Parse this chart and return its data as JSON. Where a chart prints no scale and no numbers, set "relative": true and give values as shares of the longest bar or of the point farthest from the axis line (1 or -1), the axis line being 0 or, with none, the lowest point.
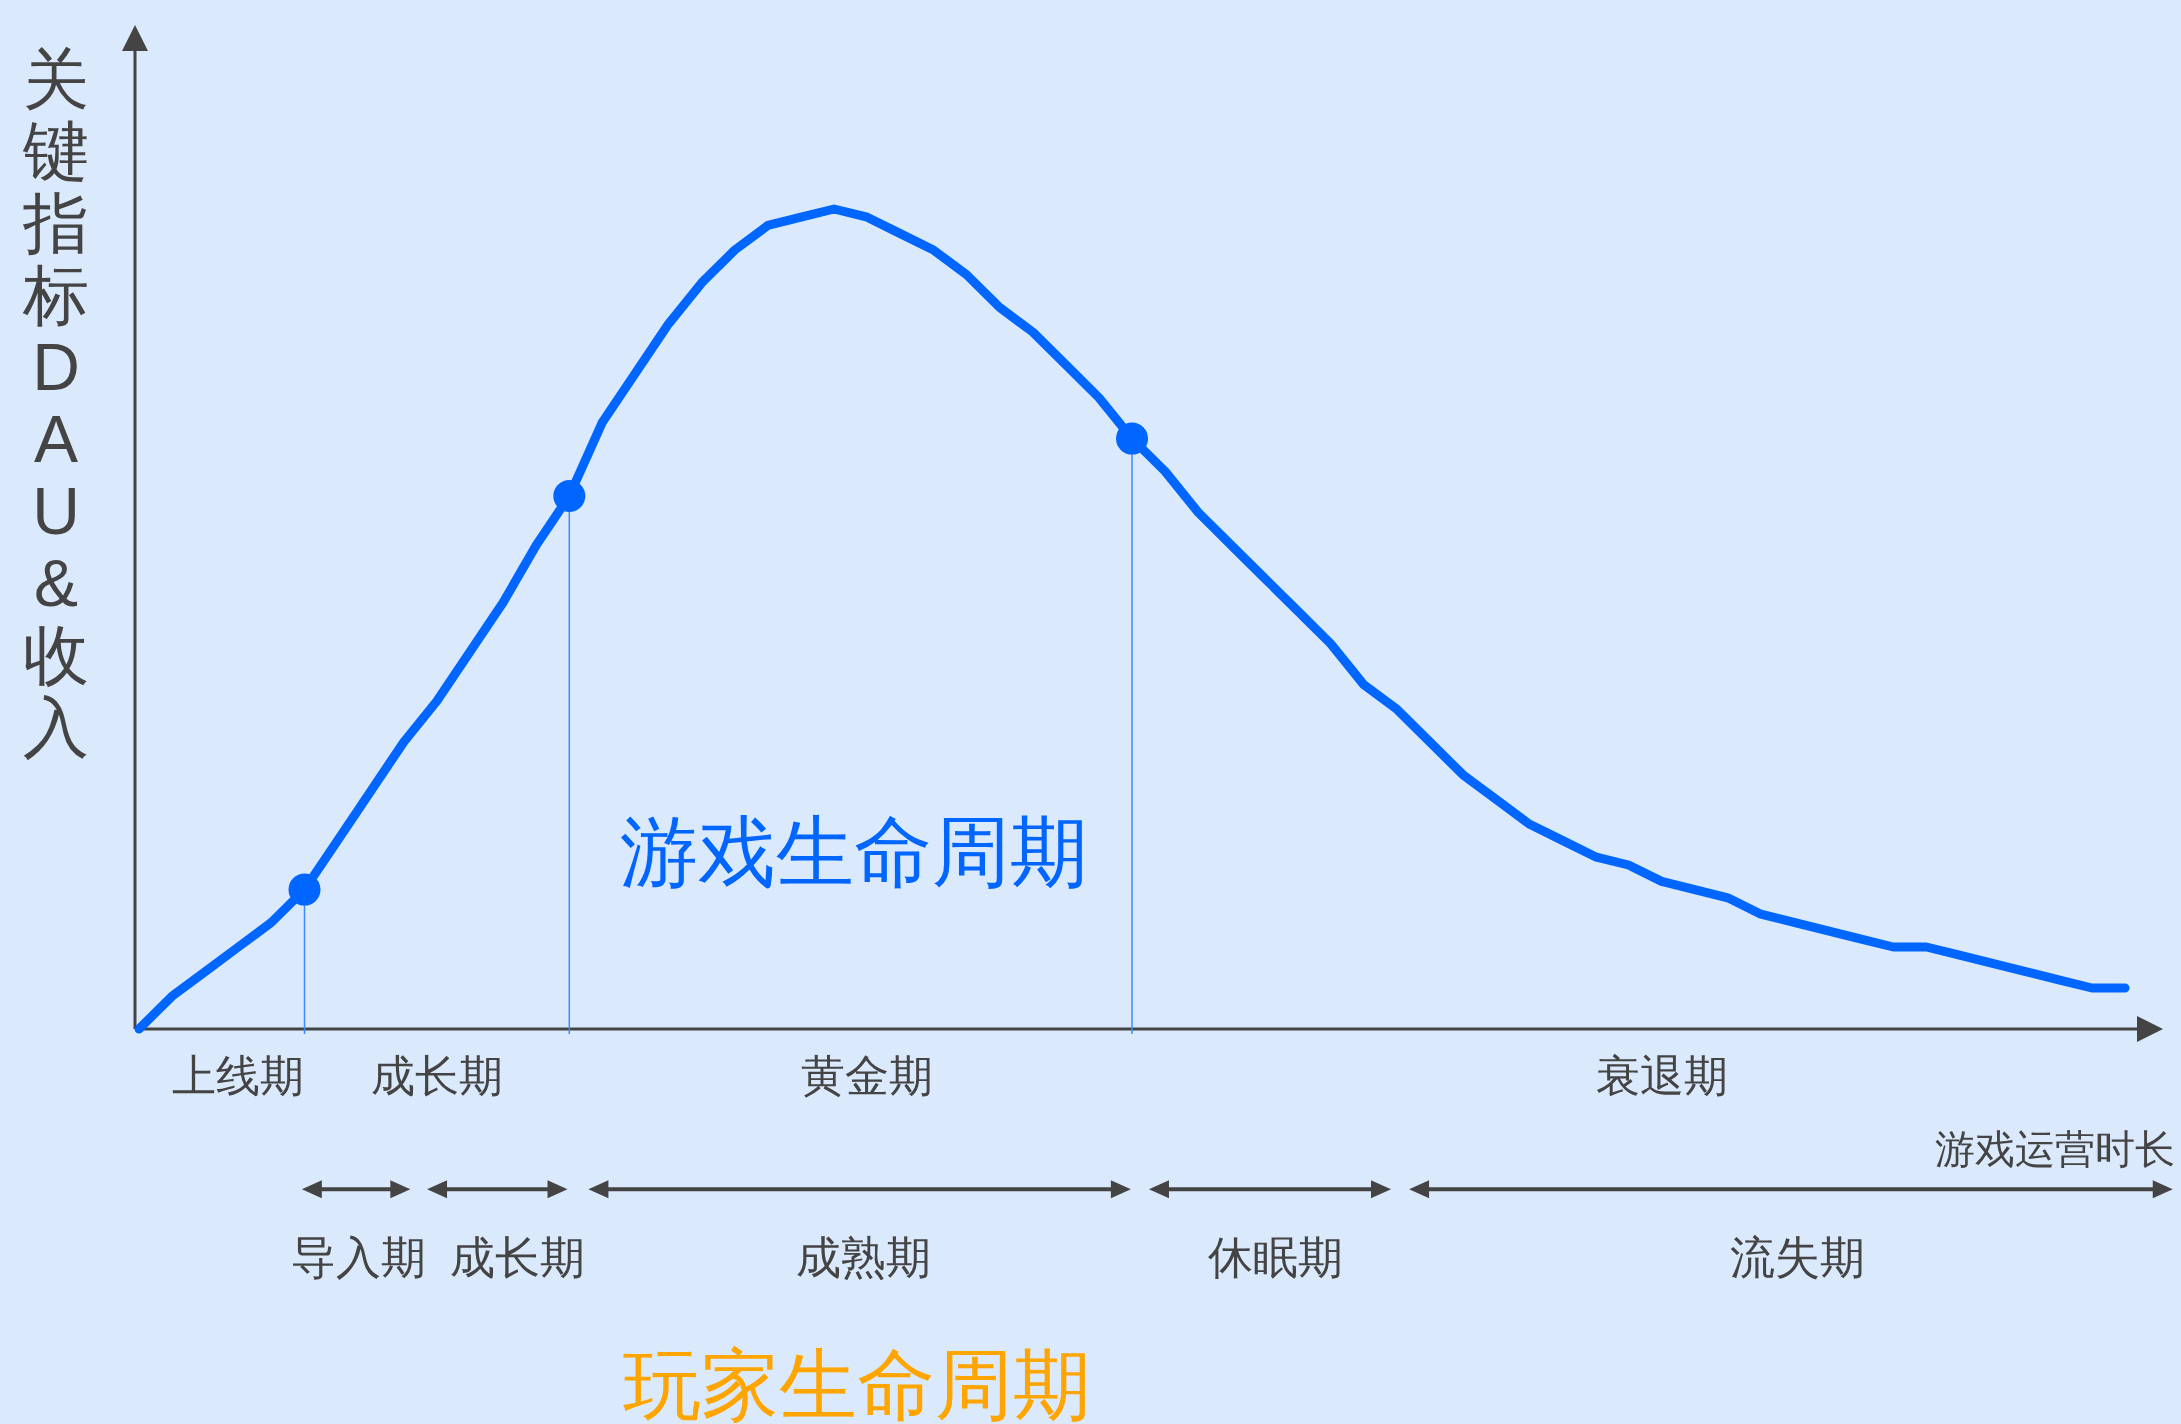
{
  "chart_data": {
    "type": "line",
    "relative": true,
    "xlabel": "游戏运营时长",
    "ylabel": "关键指标DAU&收入",
    "categories": [
      null,
      null,
      null,
      "上线期",
      null,
      null,
      null,
      null,
      null,
      "成长期",
      null,
      null,
      null,
      null,
      null,
      null,
      null,
      null,
      null,
      null,
      null,
      null,
      "黄金期",
      null,
      null,
      null,
      null,
      null,
      null,
      null,
      null,
      null,
      null,
      null,
      null,
      null,
      null,
      null,
      null,
      null,
      null,
      null,
      null,
      null,
      null,
      null,
      "衰退期",
      null,
      null,
      null,
      null,
      null,
      null,
      null,
      null,
      null,
      null,
      null,
      null,
      null,
      null
    ],
    "series": [
      {
        "color": "#0066ff",
        "marker": "none",
        "values": [
          0.0,
          0.04,
          0.07,
          0.1,
          0.13,
          0.17,
          0.23,
          0.29,
          0.35,
          0.4,
          0.46,
          0.52,
          0.59,
          0.65,
          0.74,
          0.8,
          0.86,
          0.91,
          0.95,
          0.98,
          0.99,
          1.0,
          0.99,
          0.97,
          0.95,
          0.92,
          0.88,
          0.85,
          0.81,
          0.77,
          0.72,
          0.68,
          0.63,
          0.59,
          0.55,
          0.51,
          0.47,
          0.42,
          0.39,
          0.35,
          0.31,
          0.28,
          0.25,
          0.23,
          0.21,
          0.2,
          0.18,
          0.17,
          0.16,
          0.14,
          0.13,
          0.12,
          0.11,
          0.1,
          0.1,
          0.09,
          0.08,
          0.07,
          0.06,
          0.05,
          0.05
        ]
      },
      {
        "type": "scatter",
        "color": "#0066ff",
        "marker": "circle",
        "values": [
          null,
          null,
          null,
          null,
          null,
          0.17,
          null,
          null,
          null,
          null,
          null,
          null,
          null,
          0.65,
          null,
          null,
          null,
          null,
          null,
          null,
          null,
          null,
          null,
          null,
          null,
          null,
          null,
          null,
          null,
          null,
          0.72,
          null,
          null,
          null,
          null,
          null,
          null,
          null,
          null,
          null,
          null,
          null,
          null,
          null,
          null,
          null,
          null,
          null,
          null,
          null,
          null,
          null,
          null,
          null,
          null,
          null,
          null,
          null,
          null,
          null,
          null
        ]
      }
    ],
    "annotations": [
      "游戏生命周期",
      "导入期",
      "成长期",
      "成熟期",
      "休眠期",
      "流失期",
      "玩家生命周期"
    ]
  }
}
